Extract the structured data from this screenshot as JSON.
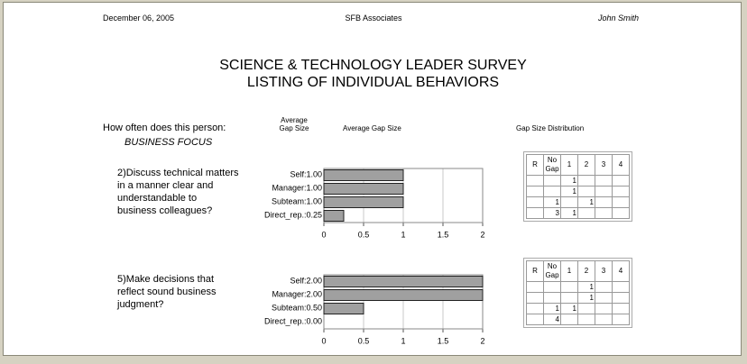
{
  "header": {
    "date": "December 06, 2005",
    "company": "SFB Associates",
    "name": "John Smith"
  },
  "title": [
    "SCIENCE & TECHNOLOGY LEADER SURVEY",
    "LISTING OF INDIVIDUAL BEHAVIORS"
  ],
  "prompt": "How often does this person:",
  "category": "BUSINESS FOCUS",
  "column_headers": {
    "average": "Average Gap Size",
    "chart": "Average Gap Size",
    "distribution": "Gap Size Distribution"
  },
  "questions": [
    [
      "2)Discuss technical matters",
      "in a manner clear and",
      "understandable to",
      "business colleagues?"
    ],
    [
      "5)Make decisions that",
      "reflect sound business",
      "judgment?"
    ]
  ],
  "chart_data": [
    {
      "type": "bar",
      "orientation": "horizontal",
      "categories": [
        "Self:",
        "Manager:",
        "Subteam:",
        "Direct_rep.:"
      ],
      "values": [
        1,
        1,
        1,
        0.25
      ],
      "value_labels": [
        "1.00",
        "1.00",
        "1.00",
        "0.25"
      ],
      "xlim": [
        0,
        2
      ],
      "xticks": [
        0,
        0.5,
        1,
        1.5,
        2
      ],
      "color": "#a0a0a0",
      "grid": true
    },
    {
      "type": "bar",
      "orientation": "horizontal",
      "categories": [
        "Self:",
        "Manager:",
        "Subteam:",
        "Direct_rep.:"
      ],
      "values": [
        2,
        2,
        0.5,
        0
      ],
      "value_labels": [
        "2.00",
        "2.00",
        "0.50",
        "0.00"
      ],
      "xlim": [
        0,
        2
      ],
      "xticks": [
        0,
        0.5,
        1,
        1.5,
        2
      ],
      "color": "#a0a0a0",
      "grid": true
    }
  ],
  "tables": [
    {
      "header": [
        "R",
        "No Gap",
        "1",
        "2",
        "3",
        "4"
      ],
      "rows": [
        [
          null,
          null,
          1,
          null,
          null,
          null
        ],
        [
          null,
          null,
          1,
          null,
          null,
          null
        ],
        [
          null,
          1,
          null,
          1,
          null,
          null
        ],
        [
          null,
          3,
          1,
          null,
          null,
          null
        ]
      ]
    },
    {
      "header": [
        "R",
        "No Gap",
        "1",
        "2",
        "3",
        "4"
      ],
      "rows": [
        [
          null,
          null,
          null,
          1,
          null,
          null
        ],
        [
          null,
          null,
          null,
          1,
          null,
          null
        ],
        [
          null,
          1,
          1,
          null,
          null,
          null
        ],
        [
          null,
          4,
          null,
          null,
          null,
          null
        ]
      ]
    }
  ]
}
